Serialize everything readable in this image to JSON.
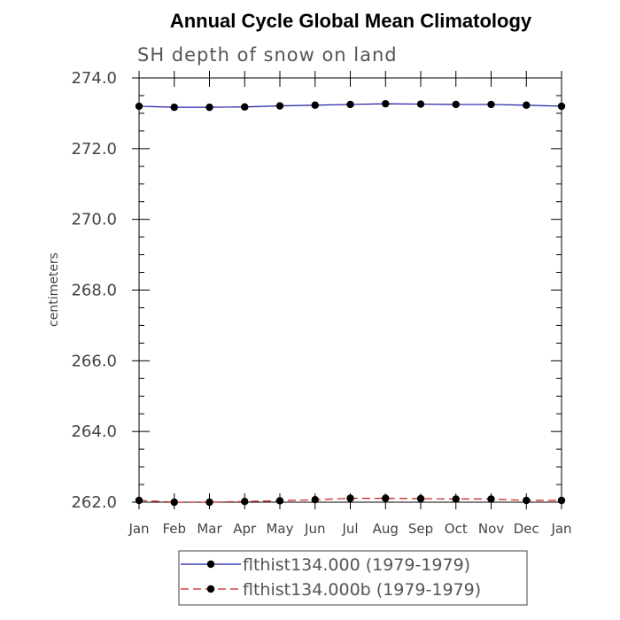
{
  "chart_data": {
    "type": "line",
    "title": "Annual Cycle Global Mean Climatology",
    "subtitle": "SH depth of snow on land",
    "ylabel": "centimeters",
    "xlabel": "",
    "ylim": [
      262.0,
      274.0
    ],
    "yticks": [
      "262.0",
      "264.0",
      "266.0",
      "268.0",
      "270.0",
      "272.0",
      "274.0"
    ],
    "ytick_values": [
      262,
      264,
      266,
      268,
      270,
      272,
      274
    ],
    "categories": [
      "Jan",
      "Feb",
      "Mar",
      "Apr",
      "May",
      "Jun",
      "Jul",
      "Aug",
      "Sep",
      "Oct",
      "Nov",
      "Dec",
      "Jan"
    ],
    "grid": false,
    "legend_position": "bottom",
    "series": [
      {
        "name": "flthist134.000 (1979-1979)",
        "color": "#1a1aa6",
        "dash": "solid",
        "marker": "filled-circle",
        "values": [
          273.2,
          273.17,
          273.17,
          273.18,
          273.21,
          273.23,
          273.25,
          273.27,
          273.26,
          273.25,
          273.25,
          273.23,
          273.2
        ]
      },
      {
        "name": "flthist134.000b (1979-1979)",
        "color": "#cc1a1a",
        "dash": "dashed",
        "marker": "filled-circle",
        "values": [
          262.05,
          262.0,
          262.0,
          262.02,
          262.04,
          262.07,
          262.11,
          262.11,
          262.1,
          262.09,
          262.09,
          262.05,
          262.05
        ]
      }
    ]
  }
}
